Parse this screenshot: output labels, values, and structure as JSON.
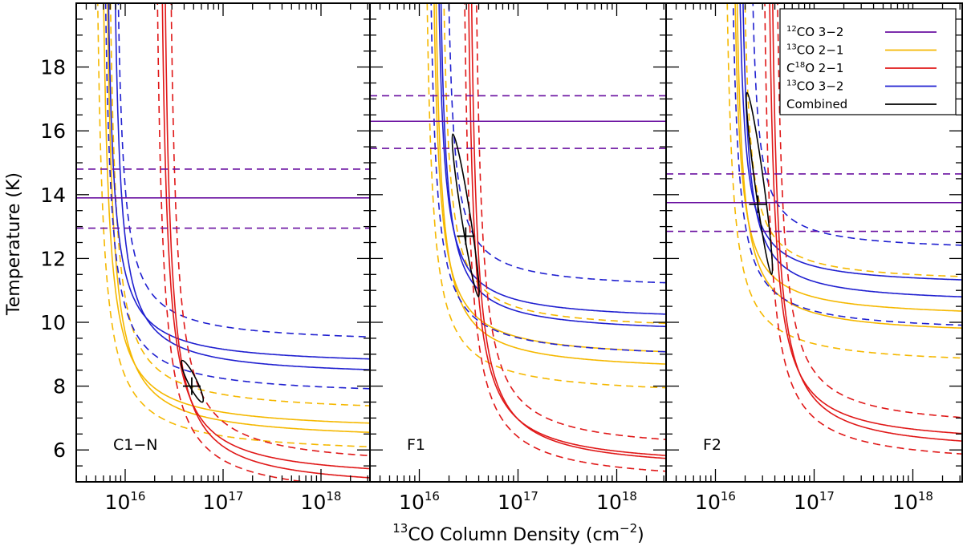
{
  "chart_data": {
    "type": "line",
    "xlabel": {
      "pre": "",
      "sup1": "13",
      "mid": "CO Column Density (cm",
      "sup2": "−2",
      "post": ")"
    },
    "ylabel": "Temperature (K)",
    "xscale": "log",
    "xlim_log10": [
      15.5,
      18.5
    ],
    "ylim": [
      5,
      20
    ],
    "yticks": [
      6,
      8,
      10,
      12,
      14,
      16,
      18
    ],
    "xticks": [
      {
        "base": "10",
        "exp": "16",
        "value_log10": 16
      },
      {
        "base": "10",
        "exp": "17",
        "value_log10": 17
      },
      {
        "base": "10",
        "exp": "18",
        "value_log10": 18
      }
    ],
    "legend": {
      "placement": "top-right",
      "entries": [
        {
          "key": "co12_32",
          "iso": "12",
          "pre": "",
          "text": "CO 3−2",
          "color": "#6a10a0"
        },
        {
          "key": "co13_21",
          "iso": "13",
          "pre": "",
          "text": "CO 2−1",
          "color": "#f5b800"
        },
        {
          "key": "c18o_21",
          "iso": "18",
          "pre": "C",
          "text": "O 2−1",
          "color": "#e01818"
        },
        {
          "key": "co13_32",
          "iso": "13",
          "pre": "",
          "text": "CO 3−2",
          "color": "#2020d0"
        },
        {
          "key": "combined",
          "iso": "",
          "pre": "",
          "text": "Combined",
          "color": "#000000"
        }
      ]
    },
    "panels": [
      {
        "label": "C1−N",
        "best_fit": {
          "log10_N": 16.68,
          "T": 8.0
        },
        "ellipse": {
          "top": {
            "log10_N": 16.58,
            "T": 8.8
          },
          "bottom": {
            "log10_N": 16.79,
            "T": 7.5
          },
          "half_width_dex": 0.045
        },
        "co12_32": {
          "T": 13.9,
          "T_low": 12.95,
          "T_high": 14.8
        },
        "co13_32": [
          {
            "asymptote": 8.6,
            "x50_log10": 15.83,
            "dash": false
          },
          {
            "asymptote": 8.25,
            "x50_log10": 15.9,
            "dash": false
          },
          {
            "asymptote": 9.3,
            "x50_log10": 15.93,
            "dash": true
          },
          {
            "asymptote": 7.65,
            "x50_log10": 15.8,
            "dash": true
          }
        ],
        "co13_21": [
          {
            "asymptote": 6.55,
            "x50_log10": 15.78,
            "dash": false
          },
          {
            "asymptote": 6.25,
            "x50_log10": 15.82,
            "dash": false
          },
          {
            "asymptote": 7.1,
            "x50_log10": 15.85,
            "dash": true
          },
          {
            "asymptote": 5.8,
            "x50_log10": 15.72,
            "dash": true
          }
        ],
        "c18o_21": [
          {
            "asymptote": 5.0,
            "x50_log10": 16.38,
            "dash": false
          },
          {
            "asymptote": 4.7,
            "x50_log10": 16.41,
            "dash": false
          },
          {
            "asymptote": 5.4,
            "x50_log10": 16.47,
            "dash": true
          },
          {
            "asymptote": 4.4,
            "x50_log10": 16.33,
            "dash": true
          }
        ]
      },
      {
        "label": "F1",
        "best_fit": {
          "log10_N": 16.47,
          "T": 12.7
        },
        "ellipse": {
          "top": {
            "log10_N": 16.34,
            "T": 15.9
          },
          "bottom": {
            "log10_N": 16.6,
            "T": 10.8
          },
          "half_width_dex": 0.045
        },
        "co12_32": {
          "T": 16.3,
          "T_low": 15.45,
          "T_high": 17.1
        },
        "co13_32": [
          {
            "asymptote": 10.0,
            "x50_log10": 16.2,
            "dash": false
          },
          {
            "asymptote": 9.6,
            "x50_log10": 16.22,
            "dash": false
          },
          {
            "asymptote": 11.0,
            "x50_log10": 16.3,
            "dash": true
          },
          {
            "asymptote": 8.8,
            "x50_log10": 16.12,
            "dash": true
          }
        ],
        "co13_21": [
          {
            "asymptote": 8.8,
            "x50_log10": 16.15,
            "dash": false
          },
          {
            "asymptote": 8.4,
            "x50_log10": 16.17,
            "dash": false
          },
          {
            "asymptote": 9.7,
            "x50_log10": 16.25,
            "dash": true
          },
          {
            "asymptote": 7.65,
            "x50_log10": 16.08,
            "dash": true
          }
        ],
        "c18o_21": [
          {
            "asymptote": 5.4,
            "x50_log10": 16.5,
            "dash": false
          },
          {
            "asymptote": 5.3,
            "x50_log10": 16.53,
            "dash": false
          },
          {
            "asymptote": 5.9,
            "x50_log10": 16.58,
            "dash": true
          },
          {
            "asymptote": 4.9,
            "x50_log10": 16.46,
            "dash": true
          }
        ]
      },
      {
        "label": "F2",
        "best_fit": {
          "log10_N": 16.43,
          "T": 13.7
        },
        "ellipse": {
          "top": {
            "log10_N": 16.32,
            "T": 17.2
          },
          "bottom": {
            "log10_N": 16.57,
            "T": 11.5
          },
          "half_width_dex": 0.045
        },
        "co12_32": {
          "T": 13.75,
          "T_low": 12.85,
          "T_high": 14.65
        },
        "co13_32": [
          {
            "asymptote": 11.1,
            "x50_log10": 16.25,
            "dash": false
          },
          {
            "asymptote": 10.55,
            "x50_log10": 16.28,
            "dash": false
          },
          {
            "asymptote": 12.2,
            "x50_log10": 16.38,
            "dash": true
          },
          {
            "asymptote": 9.65,
            "x50_log10": 16.18,
            "dash": true
          }
        ],
        "co13_21": [
          {
            "asymptote": 10.1,
            "x50_log10": 16.2,
            "dash": false
          },
          {
            "asymptote": 9.55,
            "x50_log10": 16.22,
            "dash": false
          },
          {
            "asymptote": 11.2,
            "x50_log10": 16.3,
            "dash": true
          },
          {
            "asymptote": 8.6,
            "x50_log10": 16.12,
            "dash": true
          }
        ],
        "c18o_21": [
          {
            "asymptote": 6.1,
            "x50_log10": 16.55,
            "dash": false
          },
          {
            "asymptote": 5.85,
            "x50_log10": 16.58,
            "dash": false
          },
          {
            "asymptote": 6.6,
            "x50_log10": 16.63,
            "dash": true
          },
          {
            "asymptote": 5.45,
            "x50_log10": 16.5,
            "dash": true
          }
        ]
      }
    ]
  }
}
